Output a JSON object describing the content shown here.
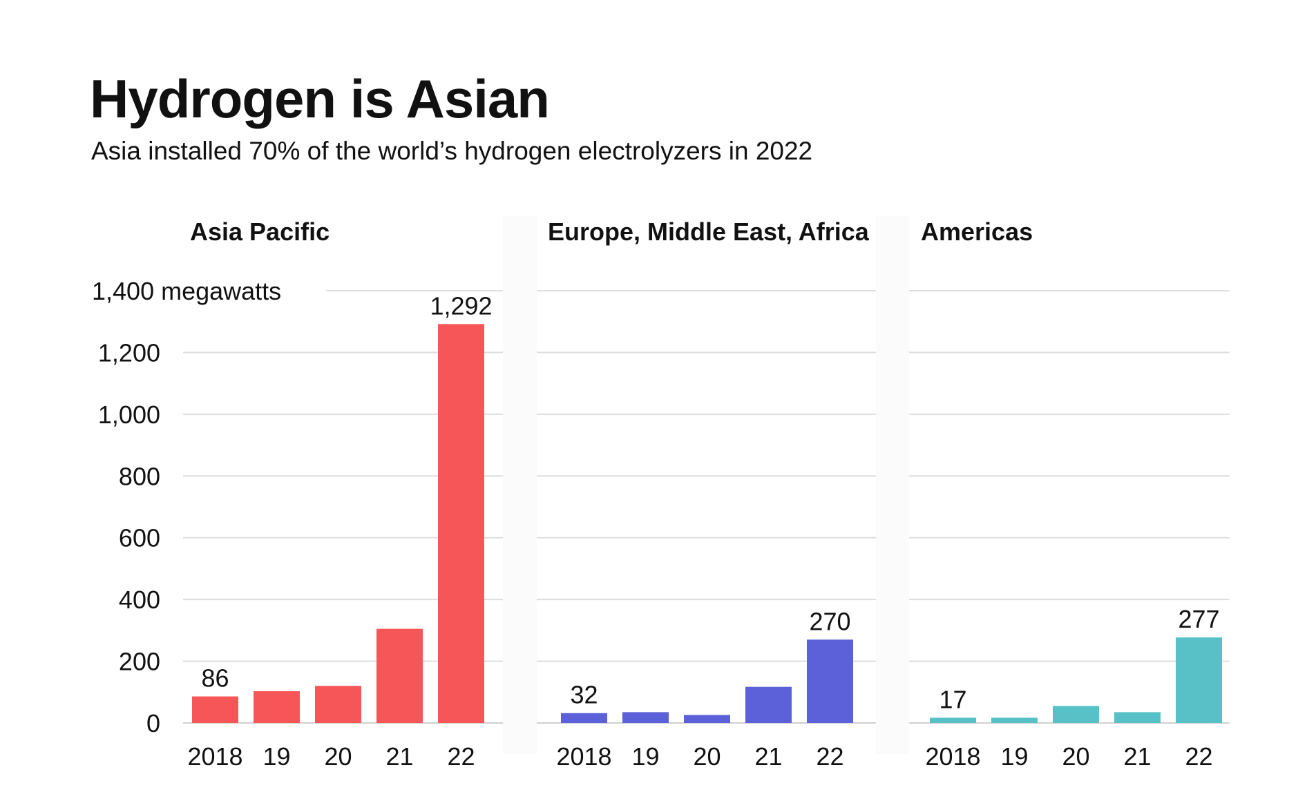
{
  "title": "Hydrogen is Asian",
  "subtitle": "Asia installed 70% of the world’s hydrogen electrolyzers in 2022",
  "chart_data": {
    "type": "bar",
    "title": "Hydrogen is Asian",
    "subtitle": "Asia installed 70% of the world’s hydrogen electrolyzers in 2022",
    "ylabel": "megawatts",
    "ylim": [
      0,
      1400
    ],
    "yticks": [
      0,
      200,
      400,
      600,
      800,
      1000,
      1200,
      1400
    ],
    "ytick_labels": [
      "0",
      "200",
      "400",
      "600",
      "800",
      "1,000",
      "1,200",
      "1,400 megawatts"
    ],
    "categories": [
      "2018",
      "19",
      "20",
      "21",
      "22"
    ],
    "grid": true,
    "panels": [
      {
        "name": "Asia Pacific",
        "color": "#f75659",
        "values": [
          86,
          103,
          120,
          305,
          1292
        ],
        "labels": {
          "0": "86",
          "4": "1,292"
        }
      },
      {
        "name": "Europe, Middle East, Africa",
        "color": "#5c61d9",
        "values": [
          32,
          35,
          26,
          117,
          270
        ],
        "labels": {
          "0": "32",
          "4": "270"
        }
      },
      {
        "name": "Americas",
        "color": "#57c1c7",
        "values": [
          17,
          17,
          55,
          35,
          277
        ],
        "labels": {
          "0": "17",
          "4": "277"
        }
      }
    ]
  }
}
